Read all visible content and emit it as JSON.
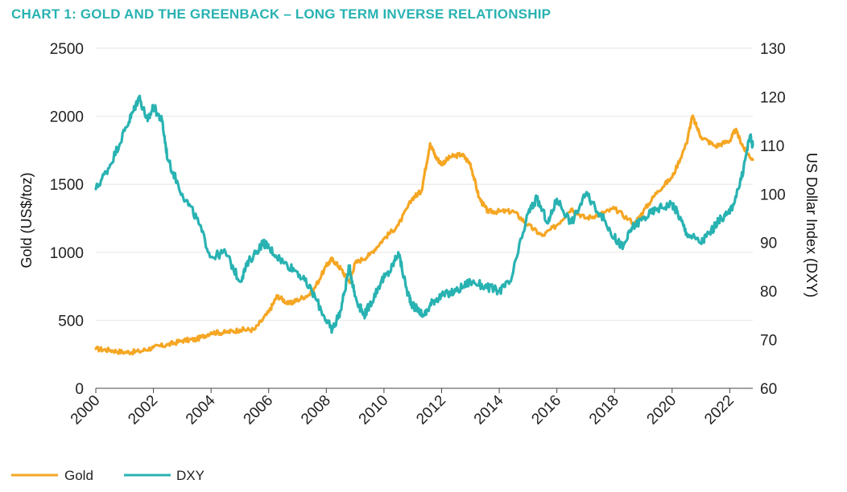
{
  "chart_data": {
    "type": "line",
    "title": "CHART 1: GOLD AND THE GREENBACK – LONG TERM INVERSE RELATIONSHIP",
    "xlabel": "",
    "ylabel": "Gold (US$/toz)",
    "y2label": "US Dollar Index (DXY)",
    "xlim": [
      2000,
      2022.8
    ],
    "ylim": [
      0,
      2500
    ],
    "y2lim": [
      60,
      130
    ],
    "x_ticks": [
      "2000",
      "2002",
      "2004",
      "2006",
      "2008",
      "2010",
      "2012",
      "2014",
      "2016",
      "2018",
      "2020",
      "2022"
    ],
    "y_ticks": [
      "0",
      "500",
      "1000",
      "1500",
      "2000",
      "2500"
    ],
    "y2_ticks": [
      "60",
      "70",
      "80",
      "90",
      "100",
      "110",
      "120",
      "130"
    ],
    "legend_position": "bottom-left",
    "colors": {
      "gold": "#F5A623",
      "dxy": "#29B2B2",
      "title": "#29B2B2"
    },
    "series": [
      {
        "name": "Gold",
        "axis": "left",
        "x": [
          2000,
          2000.5,
          2001,
          2001.5,
          2002,
          2002.5,
          2003,
          2003.5,
          2004,
          2004.5,
          2005,
          2005.5,
          2006,
          2006.3,
          2006.7,
          2007,
          2007.5,
          2008,
          2008.2,
          2008.5,
          2008.8,
          2009,
          2009.5,
          2010,
          2010.5,
          2011,
          2011.3,
          2011.6,
          2011.8,
          2012,
          2012.3,
          2012.7,
          2013,
          2013.3,
          2013.6,
          2014,
          2014.5,
          2015,
          2015.5,
          2016,
          2016.5,
          2017,
          2017.5,
          2018,
          2018.7,
          2019,
          2019.5,
          2020,
          2020.5,
          2020.7,
          2021,
          2021.5,
          2022,
          2022.2,
          2022.5,
          2022.8
        ],
        "values": [
          290,
          280,
          265,
          270,
          300,
          320,
          350,
          360,
          410,
          410,
          430,
          430,
          560,
          680,
          620,
          650,
          700,
          900,
          950,
          880,
          780,
          920,
          980,
          1100,
          1200,
          1400,
          1450,
          1800,
          1700,
          1650,
          1700,
          1720,
          1650,
          1400,
          1300,
          1300,
          1300,
          1200,
          1120,
          1200,
          1320,
          1250,
          1280,
          1320,
          1210,
          1300,
          1450,
          1550,
          1800,
          2000,
          1850,
          1780,
          1820,
          1900,
          1760,
          1680
        ]
      },
      {
        "name": "DXY",
        "axis": "right",
        "x": [
          2000,
          2000.5,
          2001,
          2001.3,
          2001.5,
          2001.8,
          2002,
          2002.3,
          2002.5,
          2003,
          2003.5,
          2004,
          2004.5,
          2005,
          2005.3,
          2005.8,
          2006,
          2006.5,
          2007,
          2007.5,
          2008,
          2008.2,
          2008.5,
          2008.8,
          2009,
          2009.3,
          2009.5,
          2009.9,
          2010.2,
          2010.5,
          2010.8,
          2011,
          2011.4,
          2011.7,
          2012,
          2012.5,
          2013,
          2013.5,
          2014,
          2014.4,
          2015,
          2015.3,
          2015.7,
          2016,
          2016.5,
          2017,
          2017.5,
          2018,
          2018.3,
          2018.6,
          2019,
          2019.5,
          2020,
          2020.2,
          2020.5,
          2021,
          2021.3,
          2021.7,
          2022,
          2022.4,
          2022.7,
          2022.8
        ],
        "values": [
          101,
          106,
          113,
          117,
          120,
          115,
          118,
          115,
          107,
          100,
          95,
          87,
          88,
          82,
          86,
          90,
          89,
          86,
          84,
          80,
          74,
          72,
          76,
          85,
          79,
          75,
          77,
          82,
          84,
          88,
          80,
          77,
          75,
          78,
          79,
          80,
          82,
          81,
          80,
          82,
          96,
          99,
          94,
          99,
          94,
          100,
          96,
          91,
          89,
          93,
          95,
          97,
          98,
          96,
          92,
          90,
          92,
          95,
          96,
          103,
          112,
          110
        ]
      }
    ]
  }
}
